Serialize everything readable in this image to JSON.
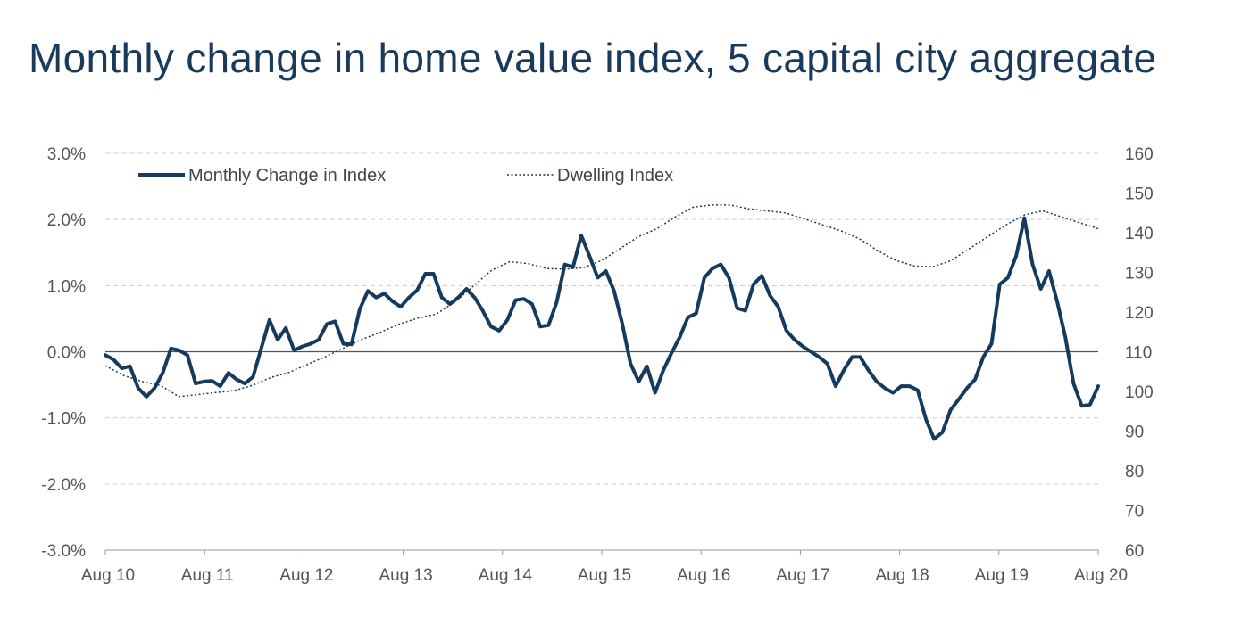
{
  "title": "Monthly change in home value index, 5 capital city aggregate",
  "chart_data": {
    "type": "line",
    "title": "Monthly change in home value index, 5 capital city aggregate",
    "x_tick_labels": [
      "Aug 10",
      "Aug 11",
      "Aug 12",
      "Aug 13",
      "Aug 14",
      "Aug 15",
      "Aug 16",
      "Aug 17",
      "Aug 18",
      "Aug 19",
      "Aug 20"
    ],
    "x_start": "Aug 10",
    "x_end": "Aug 20",
    "y_left": {
      "ylim": [
        -3.0,
        3.0
      ],
      "ticks": [
        3.0,
        2.0,
        1.0,
        0.0,
        -1.0,
        -2.0,
        -3.0
      ],
      "tick_labels": [
        "3.0%",
        "2.0%",
        "1.0%",
        "0.0%",
        "-1.0%",
        "-2.0%",
        "-3.0%"
      ]
    },
    "y_right": {
      "ylim": [
        60,
        160
      ],
      "ticks": [
        160,
        150,
        140,
        130,
        120,
        110,
        100,
        90,
        80,
        70,
        60
      ],
      "tick_labels": [
        "160",
        "150",
        "140",
        "130",
        "120",
        "110",
        "100",
        "90",
        "80",
        "70",
        "60"
      ]
    },
    "grid": "horizontal dashed",
    "zero_line": true,
    "legend_position": "top-left",
    "colors": {
      "series": "#163a5c",
      "grid": "#cccccc",
      "axis": "#555555"
    },
    "series": [
      {
        "name": "Monthly Change in Index",
        "axis": "left",
        "style": "solid",
        "values": [
          -0.05,
          -0.12,
          -0.25,
          -0.22,
          -0.55,
          -0.68,
          -0.55,
          -0.32,
          0.05,
          0.02,
          -0.05,
          -0.48,
          -0.45,
          -0.44,
          -0.52,
          -0.32,
          -0.42,
          -0.48,
          -0.38,
          0.05,
          0.48,
          0.18,
          0.36,
          0.02,
          0.08,
          0.12,
          0.18,
          0.42,
          0.46,
          0.12,
          0.11,
          0.64,
          0.92,
          0.82,
          0.88,
          0.76,
          0.68,
          0.82,
          0.93,
          1.18,
          1.18,
          0.82,
          0.72,
          0.82,
          0.95,
          0.82,
          0.62,
          0.38,
          0.32,
          0.48,
          0.78,
          0.8,
          0.72,
          0.38,
          0.4,
          0.75,
          1.32,
          1.28,
          1.76,
          1.45,
          1.12,
          1.22,
          0.92,
          0.42,
          -0.18,
          -0.45,
          -0.22,
          -0.62,
          -0.28,
          -0.02,
          0.22,
          0.52,
          0.58,
          1.12,
          1.26,
          1.32,
          1.12,
          0.66,
          0.62,
          1.02,
          1.15,
          0.85,
          0.68,
          0.32,
          0.18,
          0.08,
          0.0,
          -0.08,
          -0.18,
          -0.52,
          -0.28,
          -0.08,
          -0.08,
          -0.28,
          -0.45,
          -0.55,
          -0.62,
          -0.52,
          -0.52,
          -0.58,
          -1.02,
          -1.32,
          -1.22,
          -0.88,
          -0.72,
          -0.55,
          -0.42,
          -0.08,
          0.12,
          1.02,
          1.12,
          1.45,
          2.02,
          1.32,
          0.95,
          1.22,
          0.76,
          0.22,
          -0.48,
          -0.82,
          -0.8,
          -0.52
        ]
      },
      {
        "name": "Dwelling Index",
        "axis": "right",
        "style": "dotted",
        "values": [
          [
            0,
            106.5
          ],
          [
            6,
            104
          ],
          [
            12,
            102.5
          ],
          [
            18,
            101.5
          ],
          [
            24,
            98.7
          ],
          [
            30,
            99.2
          ],
          [
            36,
            99.7
          ],
          [
            42,
            100.2
          ],
          [
            48,
            101.5
          ],
          [
            54,
            103.5
          ],
          [
            60,
            104.8
          ],
          [
            66,
            106.8
          ],
          [
            72,
            108.8
          ],
          [
            78,
            111
          ],
          [
            84,
            113.2
          ],
          [
            90,
            115
          ],
          [
            96,
            117
          ],
          [
            102,
            118.5
          ],
          [
            108,
            119.5
          ],
          [
            114,
            122.5
          ],
          [
            120,
            126.5
          ],
          [
            126,
            130.5
          ],
          [
            132,
            132.7
          ],
          [
            138,
            132.2
          ],
          [
            144,
            131
          ],
          [
            150,
            130.8
          ],
          [
            156,
            131.2
          ],
          [
            162,
            133
          ],
          [
            168,
            136
          ],
          [
            174,
            139
          ],
          [
            180,
            141
          ],
          [
            186,
            144
          ],
          [
            192,
            146.5
          ],
          [
            198,
            147
          ],
          [
            204,
            147
          ],
          [
            210,
            146
          ],
          [
            216,
            145.5
          ],
          [
            222,
            145
          ],
          [
            228,
            143.5
          ],
          [
            234,
            142
          ],
          [
            240,
            140.5
          ],
          [
            246,
            138.5
          ],
          [
            252,
            135.5
          ],
          [
            258,
            133
          ],
          [
            264,
            131.6
          ],
          [
            270,
            131.4
          ],
          [
            276,
            133
          ],
          [
            282,
            136
          ],
          [
            288,
            139
          ],
          [
            294,
            142
          ],
          [
            300,
            144.5
          ],
          [
            306,
            145.5
          ],
          [
            312,
            144
          ],
          [
            318,
            142.5
          ],
          [
            324,
            141
          ]
        ]
      }
    ]
  },
  "legend": [
    {
      "label": "Monthly Change in Index",
      "style": "solid"
    },
    {
      "label": "Dwelling Index",
      "style": "dotted"
    }
  ]
}
